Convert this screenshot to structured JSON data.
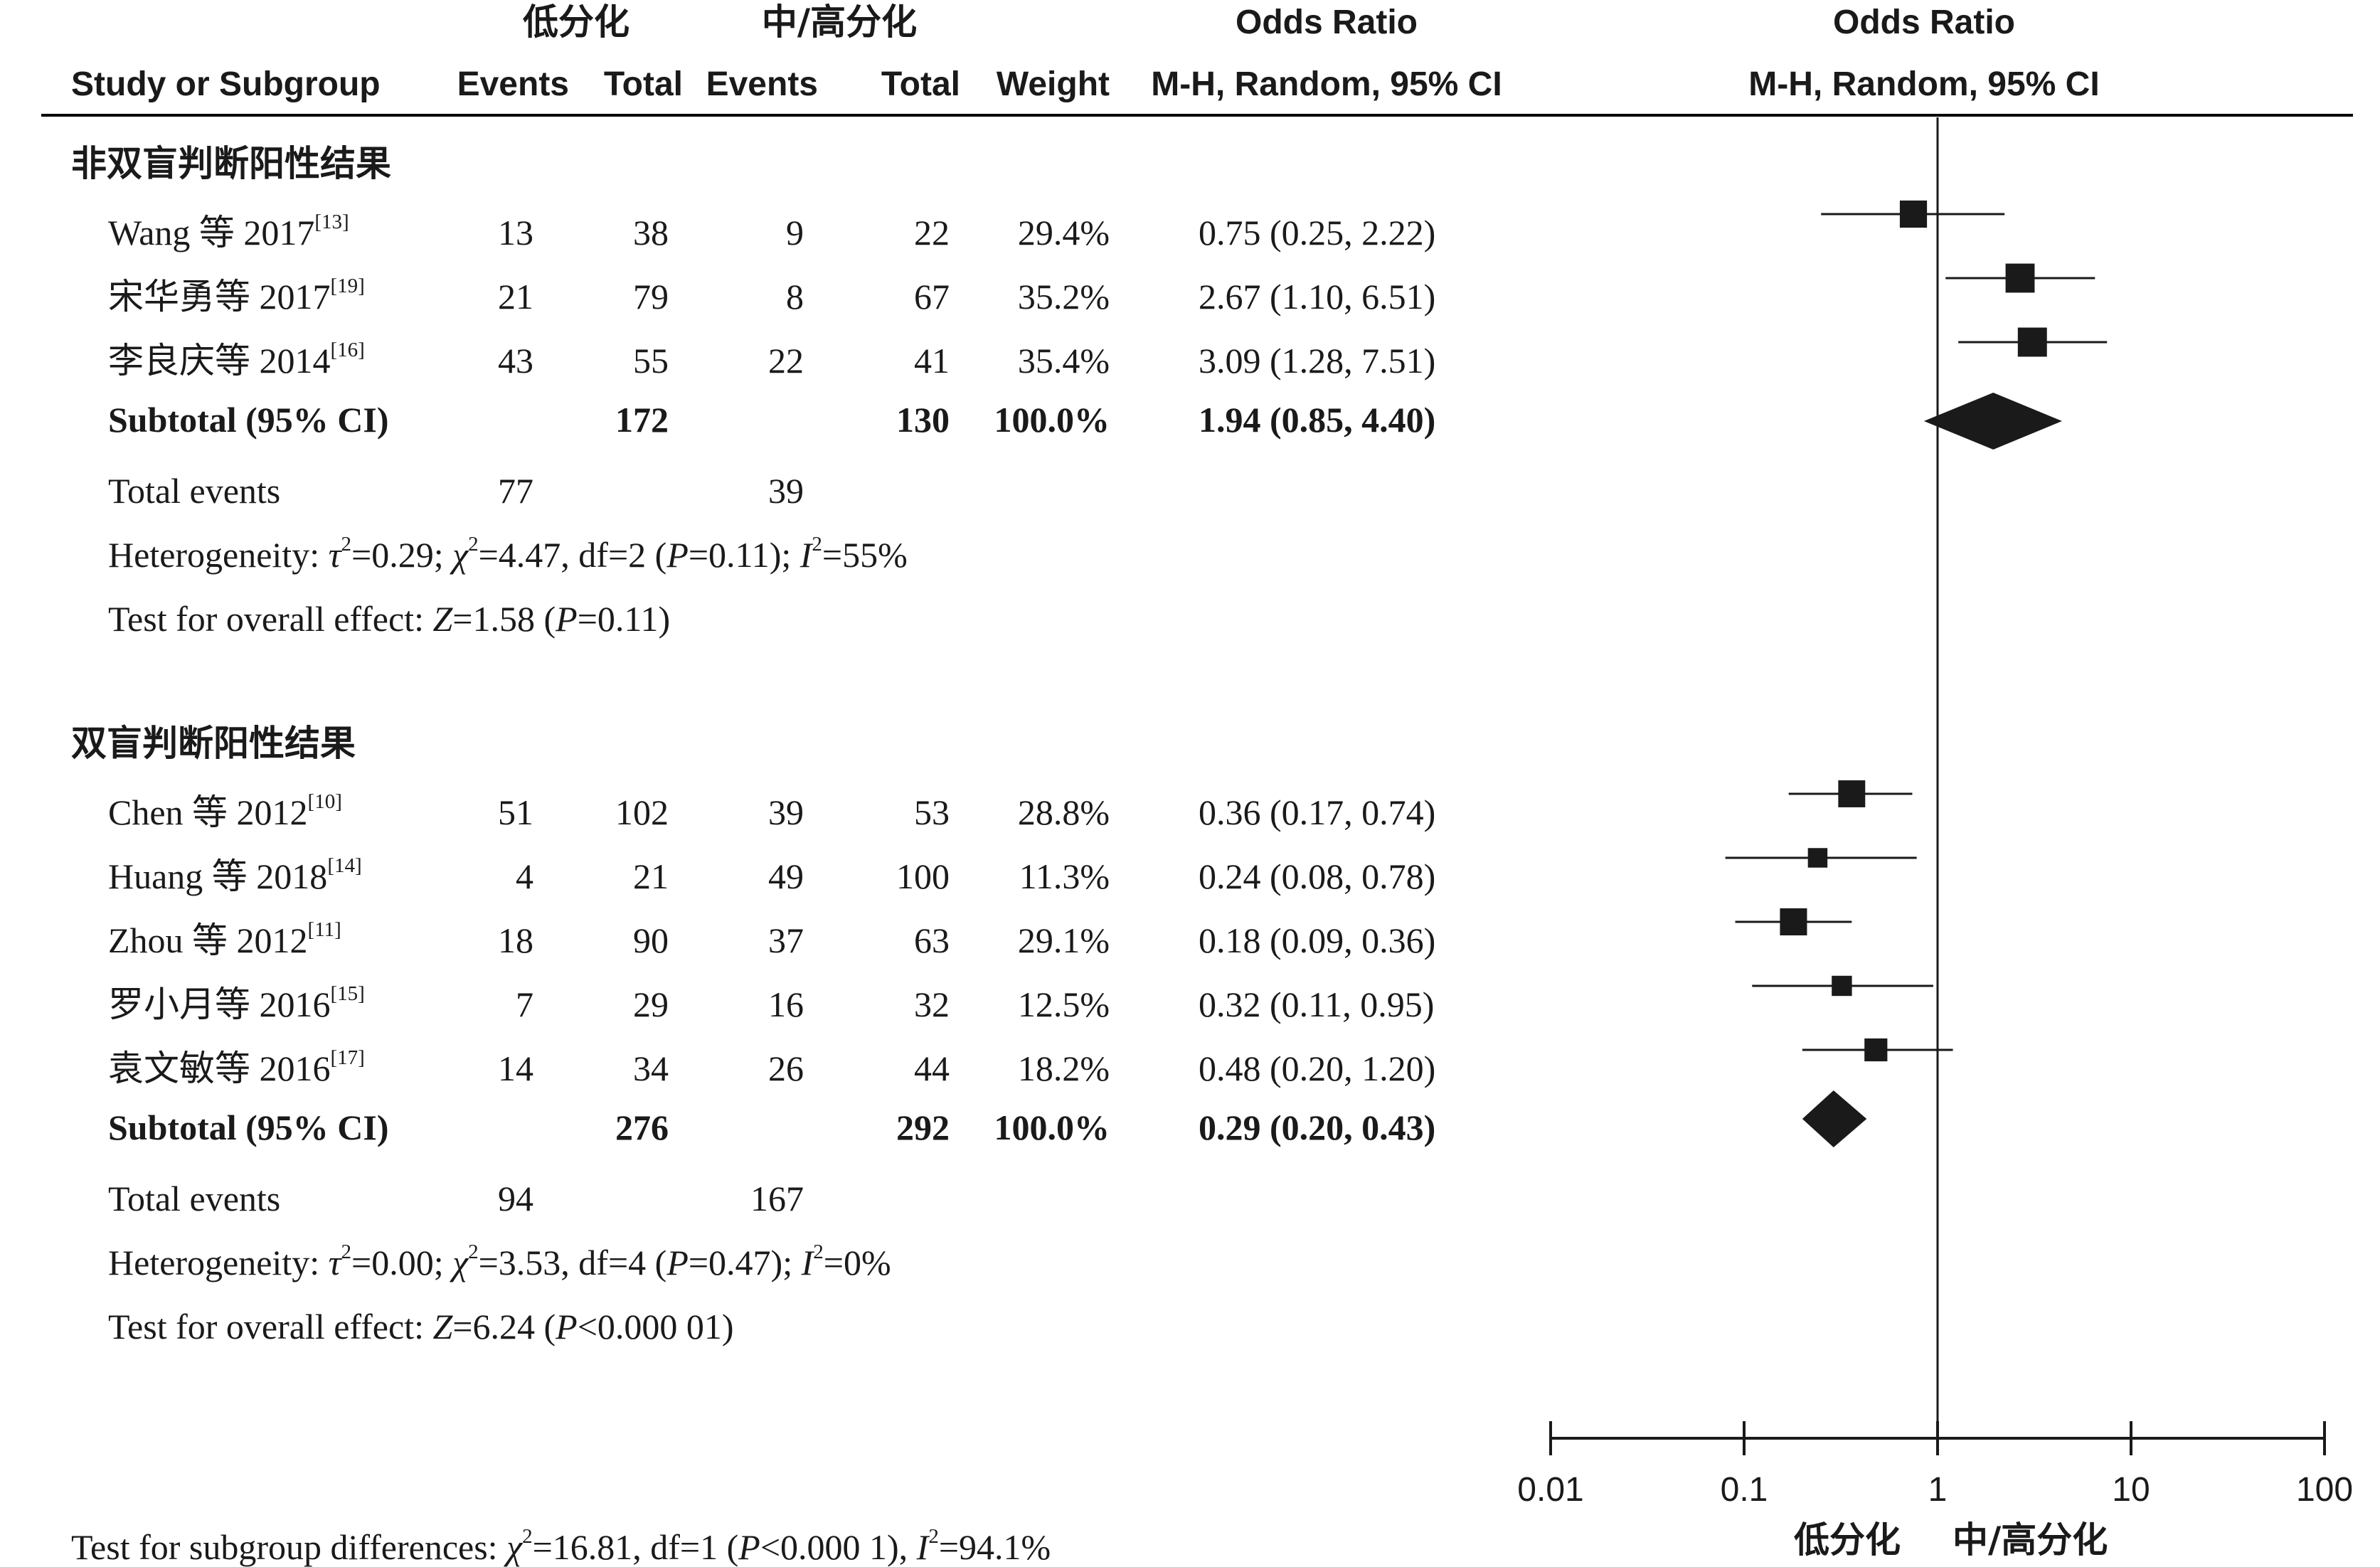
{
  "group_headers": {
    "experimental": "低分化",
    "control": "中/高分化"
  },
  "headers": {
    "study": "Study or Subgroup",
    "events1": "Events",
    "total1": "Total",
    "events2": "Events",
    "total2": "Total",
    "weight": "Weight",
    "or_title": "Odds Ratio",
    "or_method": "M-H, Random, 95% CI",
    "plot_title": "Odds Ratio",
    "plot_method": "M-H, Random, 95% CI"
  },
  "subgroups": [
    {
      "title": "非双盲判断阳性结果",
      "studies": [
        {
          "name": "Wang 等 2017",
          "ref": "[13]",
          "e1": "13",
          "t1": "38",
          "e2": "9",
          "t2": "22",
          "weight": "29.4%",
          "ci": "0.75 (0.25, 2.22)"
        },
        {
          "name": "宋华勇等 2017",
          "ref": "[19]",
          "e1": "21",
          "t1": "79",
          "e2": "8",
          "t2": "67",
          "weight": "35.2%",
          "ci": "2.67 (1.10, 6.51)"
        },
        {
          "name": "李良庆等 2014",
          "ref": "[16]",
          "e1": "43",
          "t1": "55",
          "e2": "22",
          "t2": "41",
          "weight": "35.4%",
          "ci": "3.09 (1.28, 7.51)"
        }
      ],
      "subtotal": {
        "label": "Subtotal (95% CI)",
        "t1": "172",
        "t2": "130",
        "weight": "100.0%",
        "ci": "1.94 (0.85, 4.40)"
      },
      "total_events": {
        "label": "Total events",
        "e1": "77",
        "e2": "39"
      },
      "heterogeneity": {
        "label": "Heterogeneity: ",
        "tau": "τ",
        "tau_val": "=0.29; ",
        "chi": "χ",
        "chi_val": "=4.47, df=2 (",
        "p": "P",
        "p_val": "=0.11); ",
        "i": "I",
        "i_val": "=55%",
        "sq": "2"
      },
      "overall": {
        "label": "Test for overall effect: ",
        "z": "Z",
        "z_val": "=1.58 (",
        "p": "P",
        "p_val": "=0.11)"
      }
    },
    {
      "title": "双盲判断阳性结果",
      "studies": [
        {
          "name": "Chen 等 2012",
          "ref": "[10]",
          "e1": "51",
          "t1": "102",
          "e2": "39",
          "t2": "53",
          "weight": "28.8%",
          "ci": "0.36 (0.17, 0.74)"
        },
        {
          "name": "Huang 等 2018",
          "ref": "[14]",
          "e1": "4",
          "t1": "21",
          "e2": "49",
          "t2": "100",
          "weight": "11.3%",
          "ci": "0.24 (0.08, 0.78)"
        },
        {
          "name": "Zhou 等 2012",
          "ref": "[11]",
          "e1": "18",
          "t1": "90",
          "e2": "37",
          "t2": "63",
          "weight": "29.1%",
          "ci": "0.18 (0.09, 0.36)"
        },
        {
          "name": "罗小月等 2016",
          "ref": "[15]",
          "e1": "7",
          "t1": "29",
          "e2": "16",
          "t2": "32",
          "weight": "12.5%",
          "ci": "0.32 (0.11, 0.95)"
        },
        {
          "name": "袁文敏等 2016",
          "ref": "[17]",
          "e1": "14",
          "t1": "34",
          "e2": "26",
          "t2": "44",
          "weight": "18.2%",
          "ci": "0.48 (0.20, 1.20)"
        }
      ],
      "subtotal": {
        "label": "Subtotal (95% CI)",
        "t1": "276",
        "t2": "292",
        "weight": "100.0%",
        "ci": "0.29 (0.20, 0.43)"
      },
      "total_events": {
        "label": "Total events",
        "e1": "94",
        "e2": "167"
      },
      "heterogeneity": {
        "label": "Heterogeneity: ",
        "tau": "τ",
        "tau_val": "=0.00; ",
        "chi": "χ",
        "chi_val": "=3.53, df=4 (",
        "p": "P",
        "p_val": "=0.47); ",
        "i": "I",
        "i_val": "=0%",
        "sq": "2"
      },
      "overall": {
        "label": "Test for overall effect: ",
        "z": "Z",
        "z_val": "=6.24 (",
        "p": "P",
        "p_val": "<0.000 01)"
      }
    }
  ],
  "subgroup_diff": {
    "label": "Test for subgroup differences: ",
    "chi": "χ",
    "chi_val": "=16.81, df=1 (",
    "p": "P",
    "p_val": "<0.000 1), ",
    "i": "I",
    "i_val": "=94.1%",
    "sq": "2"
  },
  "axis_labels": {
    "favours_left": "低分化",
    "favours_right": "中/高分化"
  },
  "chart_data": {
    "type": "forest",
    "x_scale": "log",
    "xlim": [
      0.01,
      100
    ],
    "ticks": [
      0.01,
      0.1,
      1,
      10,
      100
    ],
    "tick_labels": [
      "0.01",
      "0.1",
      "1",
      "10",
      "100"
    ],
    "reference_line": 1,
    "marker_color": "#1a1a1a",
    "studies": [
      {
        "name": "Wang 等 2017",
        "or": 0.75,
        "lo": 0.25,
        "hi": 2.22,
        "weight": 29.4
      },
      {
        "name": "宋华勇等 2017",
        "or": 2.67,
        "lo": 1.1,
        "hi": 6.51,
        "weight": 35.2
      },
      {
        "name": "李良庆等 2014",
        "or": 3.09,
        "lo": 1.28,
        "hi": 7.51,
        "weight": 35.4
      },
      {
        "name": "Chen 等 2012",
        "or": 0.36,
        "lo": 0.17,
        "hi": 0.74,
        "weight": 28.8
      },
      {
        "name": "Huang 等 2018",
        "or": 0.24,
        "lo": 0.08,
        "hi": 0.78,
        "weight": 11.3
      },
      {
        "name": "Zhou 等 2012",
        "or": 0.18,
        "lo": 0.09,
        "hi": 0.36,
        "weight": 29.1
      },
      {
        "name": "罗小月等 2016",
        "or": 0.32,
        "lo": 0.11,
        "hi": 0.95,
        "weight": 12.5
      },
      {
        "name": "袁文敏等 2016",
        "or": 0.48,
        "lo": 0.2,
        "hi": 1.2,
        "weight": 18.2
      }
    ],
    "subtotals": [
      {
        "name": "Subtotal 非双盲判断阳性结果",
        "or": 1.94,
        "lo": 0.85,
        "hi": 4.4
      },
      {
        "name": "Subtotal 双盲判断阳性结果",
        "or": 0.29,
        "lo": 0.2,
        "hi": 0.43
      }
    ]
  }
}
